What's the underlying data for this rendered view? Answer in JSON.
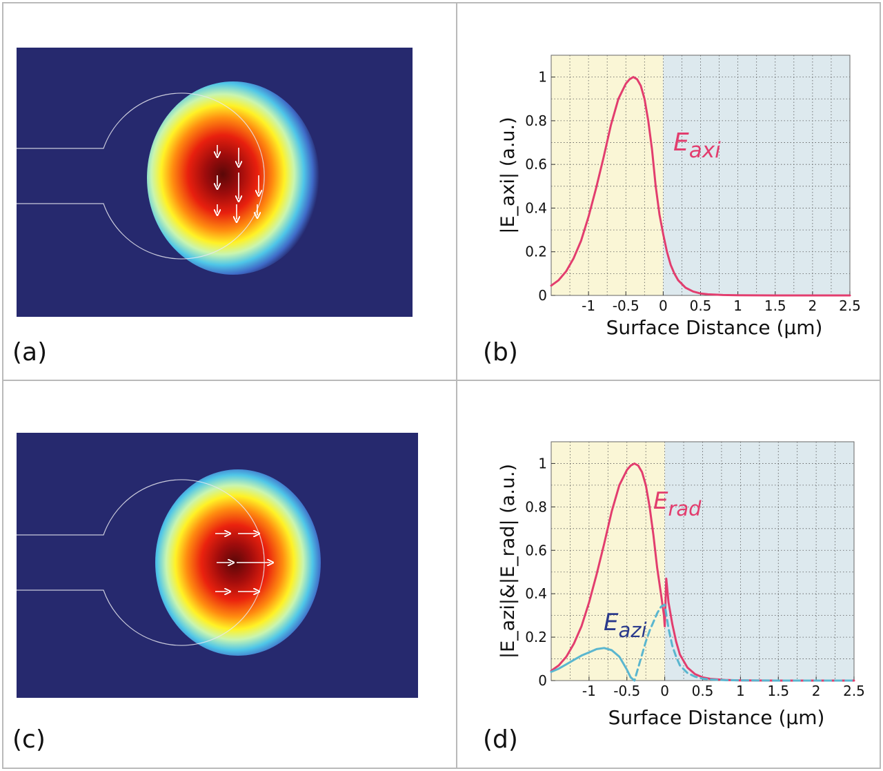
{
  "panel_labels": {
    "a": "(a)",
    "b": "(b)",
    "c": "(c)",
    "d": "(d)"
  },
  "colors": {
    "background_blue": "#26296e",
    "erad_line": "#e23d6e",
    "eazi_line": "#5ab6cf",
    "eazi_label": "#2a3a8c",
    "left_region": "#faf6d6",
    "right_region": "#dde9ee",
    "grid": "#555555",
    "frame": "#b9b9b9"
  },
  "chart_data": [
    {
      "type": "line",
      "panel": "(b)",
      "xlabel": "Surface Distance (μm)",
      "ylabel": "|E_axi| (a.u.)",
      "xlim": [
        -1.5,
        2.5
      ],
      "ylim": [
        0,
        1.1
      ],
      "xticks": [
        -1,
        -0.5,
        0,
        0.5,
        1,
        1.5,
        2,
        2.5
      ],
      "xtick_labels": [
        "-1",
        "-0.5",
        "0",
        "0.5",
        "1",
        "1.5",
        "2",
        "2.5"
      ],
      "yticks": [
        0,
        0.2,
        0.4,
        0.6,
        0.8,
        1
      ],
      "ytick_labels": [
        "0",
        "0.2",
        "0.4",
        "0.6",
        "0.8",
        "1"
      ],
      "grid": true,
      "shaded_regions": [
        {
          "from": -1.5,
          "to": 0,
          "color": "#faf6d6"
        },
        {
          "from": 0,
          "to": 2.5,
          "color": "#dde9ee"
        }
      ],
      "series": [
        {
          "name": "E_axi",
          "label": {
            "main": "E",
            "sub": "axi"
          },
          "color": "#e23d6e",
          "dash": false,
          "x": [
            -1.5,
            -1.4,
            -1.3,
            -1.2,
            -1.1,
            -1.0,
            -0.9,
            -0.8,
            -0.7,
            -0.6,
            -0.5,
            -0.45,
            -0.4,
            -0.35,
            -0.3,
            -0.25,
            -0.2,
            -0.15,
            -0.1,
            -0.05,
            0,
            0.05,
            0.1,
            0.15,
            0.2,
            0.3,
            0.4,
            0.5,
            0.6,
            0.8,
            1.0,
            1.5,
            2.0,
            2.5
          ],
          "y": [
            0.045,
            0.07,
            0.11,
            0.17,
            0.25,
            0.36,
            0.49,
            0.63,
            0.78,
            0.9,
            0.97,
            0.99,
            1.0,
            0.99,
            0.96,
            0.9,
            0.8,
            0.67,
            0.5,
            0.37,
            0.28,
            0.2,
            0.14,
            0.1,
            0.07,
            0.035,
            0.018,
            0.009,
            0.005,
            0.002,
            0.001,
            0.0,
            0.0,
            0.0
          ]
        }
      ]
    },
    {
      "type": "line",
      "panel": "(d)",
      "xlabel": "Surface Distance (μm)",
      "ylabel": "|E_azi|&|E_rad| (a.u.)",
      "xlim": [
        -1.5,
        2.5
      ],
      "ylim": [
        0,
        1.1
      ],
      "xticks": [
        -1,
        -0.5,
        0,
        0.5,
        1,
        1.5,
        2,
        2.5
      ],
      "xtick_labels": [
        "-1",
        "-0.5",
        "0",
        "0.5",
        "1",
        "1.5",
        "2",
        "2.5"
      ],
      "yticks": [
        0,
        0.2,
        0.4,
        0.6,
        0.8,
        1
      ],
      "ytick_labels": [
        "0",
        "0.2",
        "0.4",
        "0.6",
        "0.8",
        "1"
      ],
      "grid": true,
      "shaded_regions": [
        {
          "from": -1.5,
          "to": 0,
          "color": "#faf6d6"
        },
        {
          "from": 0,
          "to": 2.5,
          "color": "#dde9ee"
        }
      ],
      "series": [
        {
          "name": "E_rad",
          "label": {
            "main": "E",
            "sub": "rad"
          },
          "color": "#e23d6e",
          "dash": false,
          "x": [
            -1.5,
            -1.4,
            -1.3,
            -1.2,
            -1.1,
            -1.0,
            -0.9,
            -0.8,
            -0.7,
            -0.6,
            -0.5,
            -0.45,
            -0.4,
            -0.35,
            -0.3,
            -0.25,
            -0.2,
            -0.15,
            -0.1,
            -0.05,
            -0.01,
            0.0,
            0.02,
            0.05,
            0.1,
            0.15,
            0.2,
            0.3,
            0.4,
            0.5,
            0.6,
            0.8,
            1.0,
            1.5,
            2.0,
            2.5
          ],
          "y": [
            0.045,
            0.07,
            0.11,
            0.17,
            0.25,
            0.36,
            0.49,
            0.63,
            0.78,
            0.9,
            0.97,
            0.99,
            1.0,
            0.99,
            0.96,
            0.9,
            0.8,
            0.67,
            0.52,
            0.4,
            0.3,
            0.25,
            0.47,
            0.36,
            0.26,
            0.18,
            0.12,
            0.06,
            0.03,
            0.015,
            0.008,
            0.003,
            0.001,
            0.0,
            0.0,
            0.0
          ]
        },
        {
          "name": "E_azi",
          "label": {
            "main": "E",
            "sub": "azi"
          },
          "color": "#5ab6cf",
          "dash": false,
          "x": [
            -1.5,
            -1.4,
            -1.3,
            -1.2,
            -1.1,
            -1.0,
            -0.9,
            -0.8,
            -0.7,
            -0.6,
            -0.55,
            -0.5,
            -0.45
          ],
          "y": [
            0.04,
            0.055,
            0.075,
            0.095,
            0.115,
            0.13,
            0.145,
            0.15,
            0.14,
            0.11,
            0.08,
            0.05,
            0.015
          ]
        },
        {
          "name": "E_azi (dashed)",
          "color": "#5ab6cf",
          "dash": true,
          "x": [
            -0.45,
            -0.4,
            -0.35,
            -0.3,
            -0.25,
            -0.2,
            -0.15,
            -0.1,
            -0.05,
            0.0,
            0.05,
            0.1,
            0.15,
            0.2,
            0.3,
            0.4,
            0.5,
            0.6,
            0.8,
            1.0,
            1.5,
            2.0,
            2.5
          ],
          "y": [
            0.015,
            0.0,
            0.06,
            0.12,
            0.18,
            0.23,
            0.27,
            0.31,
            0.34,
            0.35,
            0.24,
            0.16,
            0.11,
            0.07,
            0.035,
            0.018,
            0.009,
            0.005,
            0.002,
            0.001,
            0.0,
            0.0,
            0.0
          ]
        }
      ]
    }
  ]
}
